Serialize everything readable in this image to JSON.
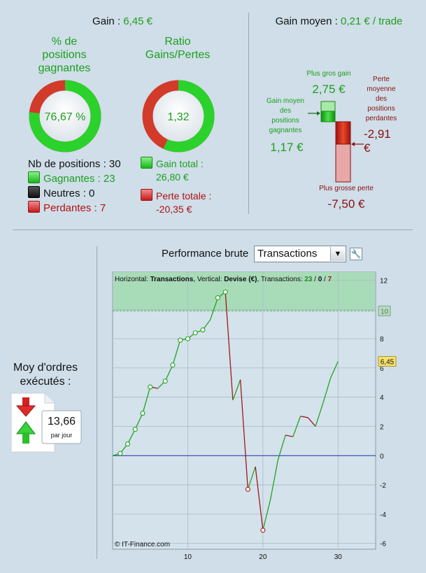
{
  "gain": {
    "label": "Gain :",
    "value": "6,45 €"
  },
  "gain_moyen": {
    "label": "Gain moyen :",
    "value": "0,21 € / trade"
  },
  "pct_gagnantes": {
    "title_lines": [
      "% de",
      "positions",
      "gagnantes"
    ],
    "value_text": "76,67 %",
    "fraction": 0.7667
  },
  "ratio": {
    "title_lines": [
      "Ratio",
      "Gains/Pertes"
    ],
    "value_text": "1,32",
    "fraction": 0.568
  },
  "positions": {
    "total": "Nb de positions : 30",
    "gagnantes": "Gagnantes : 23",
    "neutres": "Neutres : 0",
    "perdantes": "Perdantes : 7"
  },
  "totals": {
    "gain_lines": [
      "Gain total :",
      "26,80 €"
    ],
    "perte_lines": [
      "Perte totale :",
      "-20,35 €"
    ]
  },
  "stats": {
    "plus_gros_gain_label": "Plus gros gain",
    "plus_gros_gain_value": "2,75 €",
    "gain_moyen_lines": [
      "Gain moyen",
      "des",
      "positions",
      "gagnantes"
    ],
    "gain_moyen_value": "1,17 €",
    "perte_moyenne_lines": [
      "Perte",
      "moyenne",
      "des",
      "positions",
      "perdantes"
    ],
    "perte_moyenne_value_lines": [
      "-2,91",
      "€"
    ],
    "plus_grosse_perte_label": "Plus grosse perte",
    "plus_grosse_perte_value": "-7,50 €"
  },
  "orders": {
    "title_lines": [
      "Moy d'ordres",
      "exécutés :"
    ],
    "value": "13,66",
    "unit": "par jour"
  },
  "performance": {
    "label": "Performance brute",
    "selected": "Transactions"
  },
  "chart_data": {
    "type": "line",
    "header": {
      "h_label": "Horizontal:",
      "h_value": "Transactions",
      "v_label": ", Vertical:",
      "v_value": "Devise (€)",
      "t_label": ", Transactions:",
      "wins": "23",
      "sep1": "/",
      "neutral": "0",
      "sep2": "/",
      "losses": "7"
    },
    "copyright": "© IT-Finance.com",
    "xlim": [
      0,
      35
    ],
    "ylim": [
      -6.4,
      12.6
    ],
    "x_ticks": [
      10,
      20,
      30
    ],
    "y_ticks": [
      12,
      10,
      8,
      6,
      4,
      2,
      0,
      -2,
      -4,
      -6
    ],
    "y_tick_labels": [
      "12",
      "10",
      "8",
      "6",
      "4",
      "2",
      "0",
      "-2",
      "-4",
      "-6"
    ],
    "x_tick_labels": [
      "10",
      "20",
      "30"
    ],
    "target_band_from": 9.9,
    "target_label": "10",
    "current_label": "6,45",
    "current_value": 6.45,
    "points": [
      [
        0,
        0
      ],
      [
        1,
        0.15
      ],
      [
        2,
        0.8
      ],
      [
        3,
        1.8
      ],
      [
        4,
        2.9
      ],
      [
        5,
        4.7
      ],
      [
        6,
        4.6
      ],
      [
        7,
        5.1
      ],
      [
        8,
        6.2
      ],
      [
        9,
        7.9
      ],
      [
        10,
        8.0
      ],
      [
        11,
        8.4
      ],
      [
        12,
        8.6
      ],
      [
        13,
        9.3
      ],
      [
        14,
        10.8
      ],
      [
        15,
        11.2
      ],
      [
        16,
        3.8
      ],
      [
        17,
        5.2
      ],
      [
        18,
        -2.3
      ],
      [
        19,
        -0.75
      ],
      [
        20,
        -5.1
      ],
      [
        21,
        -3.0
      ],
      [
        22,
        -0.3
      ],
      [
        23,
        1.4
      ],
      [
        24,
        1.3
      ],
      [
        25,
        2.7
      ],
      [
        26,
        2.6
      ],
      [
        27,
        2.0
      ],
      [
        28,
        3.6
      ],
      [
        29,
        5.3
      ],
      [
        30,
        6.45
      ]
    ],
    "circled_x": [
      1,
      2,
      3,
      4,
      5,
      7,
      8,
      9,
      10,
      11,
      12,
      14,
      15,
      18,
      20
    ],
    "colors": {
      "up": "#22a322",
      "down": "#a01818",
      "zero_line": "#2233aa"
    }
  }
}
